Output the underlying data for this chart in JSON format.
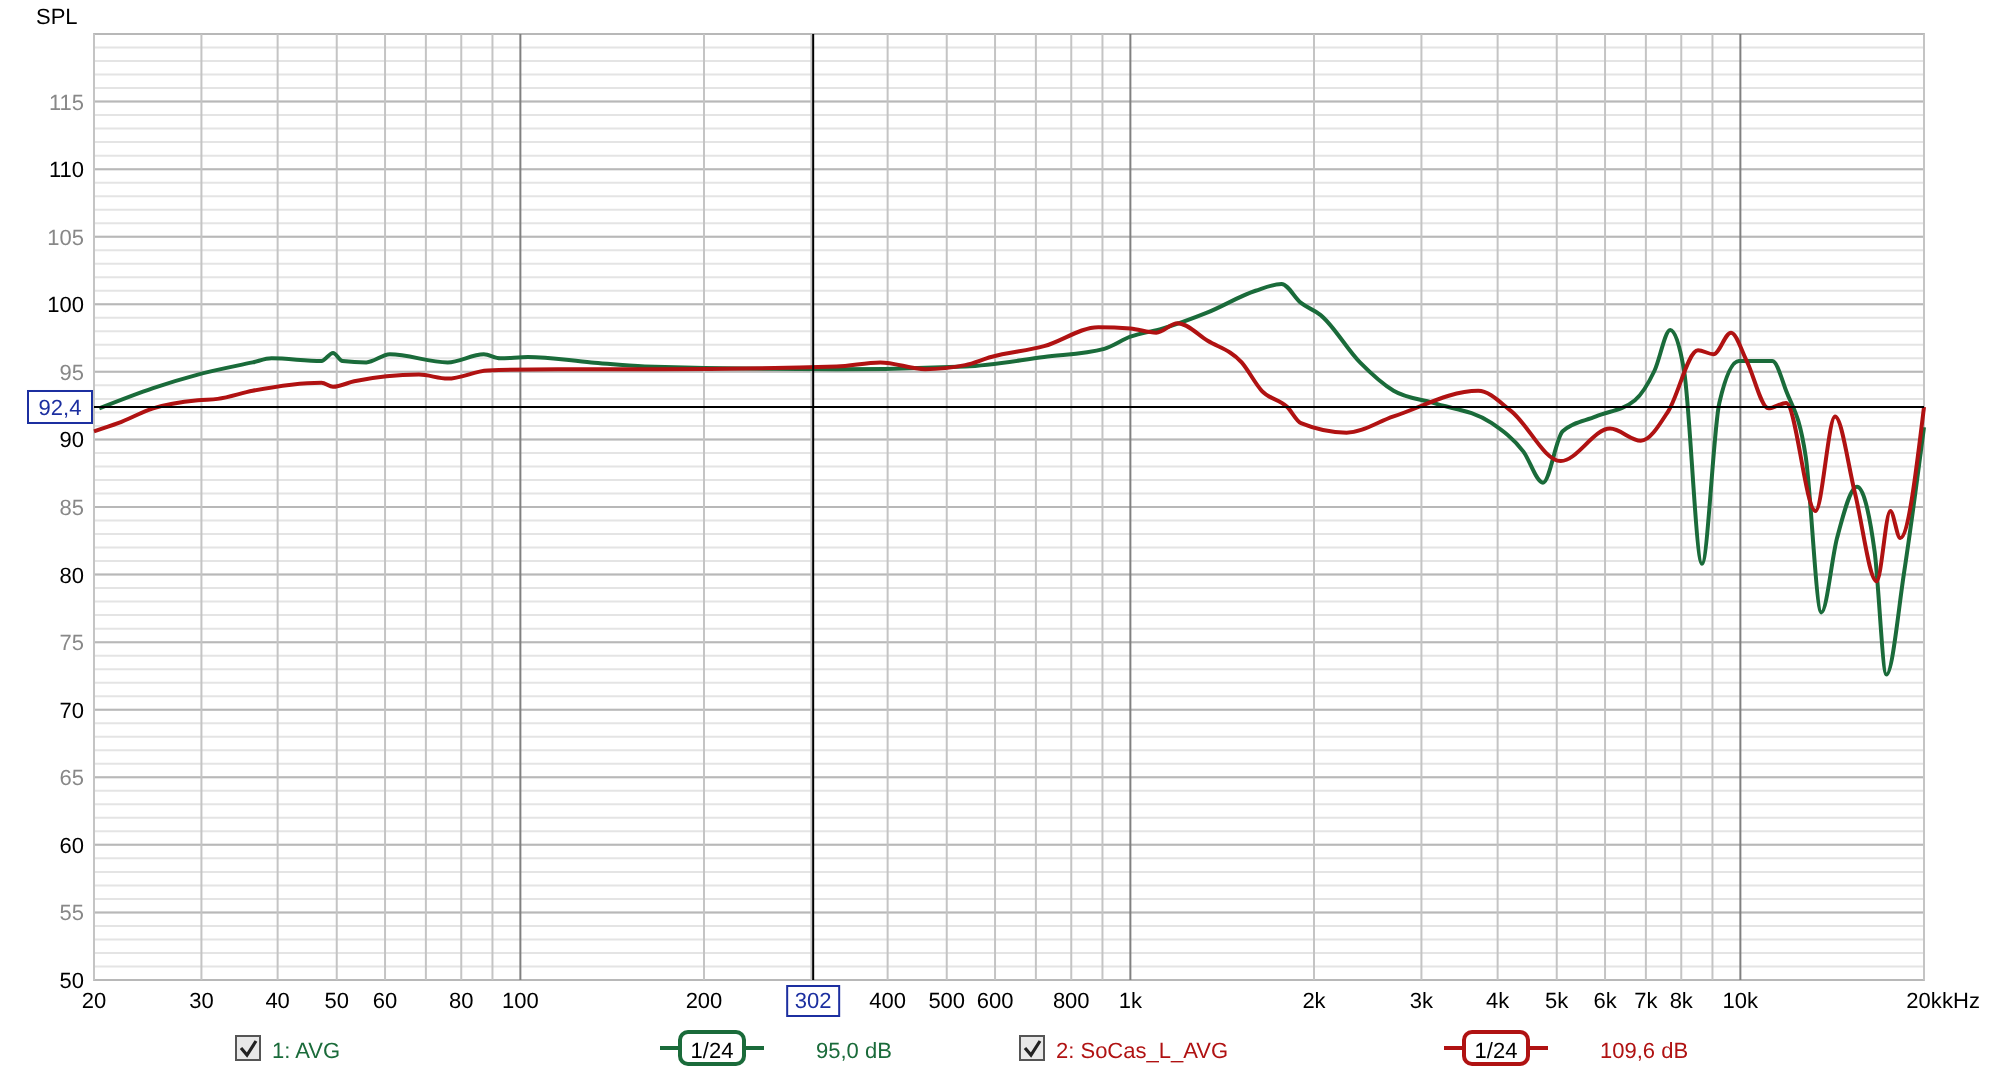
{
  "chart_data": {
    "type": "line",
    "ylabel": "SPL",
    "log": "x",
    "xlim": [
      20,
      20000
    ],
    "ylim": [
      50,
      120
    ],
    "xticks": [
      20,
      30,
      40,
      50,
      60,
      {
        "value": 70,
        "label": null
      },
      80,
      {
        "value": 90,
        "label": null
      },
      100,
      200,
      {
        "value": 300,
        "label": null
      },
      400,
      500,
      600,
      {
        "value": 700,
        "label": null
      },
      800,
      {
        "value": 900,
        "label": null
      },
      {
        "value": 1000,
        "label": "1k"
      },
      {
        "value": 2000,
        "label": "2k"
      },
      {
        "value": 3000,
        "label": "3k"
      },
      {
        "value": 4000,
        "label": "4k"
      },
      {
        "value": 5000,
        "label": "5k"
      },
      {
        "value": 6000,
        "label": "6k"
      },
      {
        "value": 7000,
        "label": "7k"
      },
      {
        "value": 8000,
        "label": "8k"
      },
      {
        "value": 9000,
        "label": null
      },
      {
        "value": 10000,
        "label": "10k"
      },
      {
        "value": 20000,
        "label": "20k"
      }
    ],
    "xlabel": "kHz",
    "yticks": [
      50,
      55,
      60,
      65,
      70,
      75,
      80,
      85,
      90,
      95,
      100,
      105,
      110,
      115,
      {
        "value": 120,
        "label": null
      }
    ],
    "grid": true,
    "legend": "bottom",
    "line_style": "solid",
    "marker": "none",
    "ref_lines": [
      {
        "axis": "x",
        "value": 302,
        "label": "302",
        "color": "#000000"
      },
      {
        "axis": "y",
        "value": 92.4,
        "label": "92,4",
        "color": "#000000"
      }
    ],
    "annotations": [
      "1/24",
      "95,0 dB",
      "1/24",
      "109,6 dB"
    ],
    "series": [
      {
        "name": "1: AVG",
        "color": "#1a6b3a",
        "x": [
          20.4,
          25,
          29.6,
          36.4,
          39.1,
          47.2,
          49.3,
          51.1,
          55.9,
          61.1,
          76,
          87.1,
          92.7,
          102.9,
          130.7,
          160,
          330,
          536,
          722,
          906,
          1000,
          1128,
          1339,
          1604,
          1769,
          1904,
          2051,
          2379,
          2701,
          3136,
          3913,
          4409,
          4747,
          5113,
          5800,
          6717,
          7234,
          7676,
          8085,
          8650,
          9236,
          9945,
          11284,
          11885,
          12800,
          13576,
          14404,
          15531,
          16599,
          17355,
          18558,
          20000
        ],
        "values": [
          92.3,
          93.8,
          94.8,
          95.7,
          96,
          95.8,
          96.4,
          95.8,
          95.7,
          96.3,
          95.7,
          96.3,
          96,
          96.1,
          95.7,
          95.4,
          95.2,
          95.4,
          96.1,
          96.7,
          97.6,
          98.2,
          99.4,
          101,
          101.5,
          100.1,
          99.2,
          95.7,
          93.6,
          92.7,
          91.2,
          89.1,
          86.8,
          90.6,
          91.7,
          92.9,
          95.1,
          98.1,
          95.1,
          80.8,
          92.7,
          95.8,
          95.8,
          93.6,
          88.7,
          77.2,
          82.7,
          86.5,
          81.7,
          72.6,
          80.2,
          90.9
        ]
      },
      {
        "name": "2: SoCas_L_AVG",
        "color": "#b01212",
        "x": [
          20,
          21.9,
          25,
          29.6,
          31.9,
          36.4,
          47.2,
          49.3,
          53.4,
          68.2,
          76,
          88.4,
          115,
          167,
          330,
          389,
          461,
          536,
          591,
          722,
          886,
          1000,
          1103,
          1195,
          1339,
          1522,
          1642,
          1808,
          1904,
          2262,
          2701,
          3718,
          4210,
          5075,
          6115,
          6868,
          7619,
          8522,
          9036,
          9655,
          10243,
          11118,
          11885,
          13280,
          14297,
          15416,
          16722,
          17615,
          18284,
          20000
        ],
        "values": [
          90.6,
          91.2,
          92.3,
          92.9,
          93,
          93.6,
          94.2,
          93.9,
          94.3,
          94.8,
          94.5,
          95.1,
          95.2,
          95.2,
          95.4,
          95.7,
          95.2,
          95.5,
          96.1,
          96.9,
          98.3,
          98.2,
          97.9,
          98.6,
          97.3,
          95.7,
          93.6,
          92.4,
          91.2,
          90.5,
          91.7,
          93.6,
          92.1,
          88.4,
          90.8,
          89.9,
          92.1,
          96.6,
          96.3,
          97.9,
          95.8,
          92.3,
          92.7,
          84.7,
          91.7,
          86,
          79.5,
          84.7,
          82.7,
          92.4
        ]
      }
    ]
  }
}
